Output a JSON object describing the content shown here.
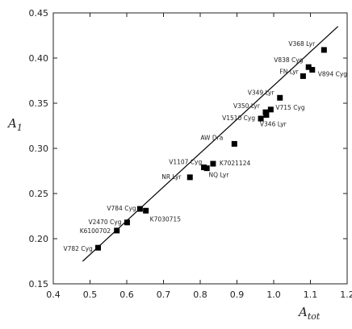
{
  "chart_data": {
    "type": "scatter",
    "x_label": {
      "main": "A",
      "sub": "tot"
    },
    "y_label": {
      "main": "A",
      "sub": "1"
    },
    "xlim": [
      0.4,
      1.2
    ],
    "ylim": [
      0.15,
      0.45
    ],
    "x_ticks": [
      "0.4",
      "0.5",
      "0.6",
      "0.7",
      "0.8",
      "0.9",
      "1.0",
      "1.1",
      "1.2"
    ],
    "y_ticks": [
      "0.15",
      "0.20",
      "0.25",
      "0.30",
      "0.35",
      "0.40",
      "0.45"
    ],
    "grid": false,
    "fit_line": {
      "x": [
        0.48,
        1.175
      ],
      "y": [
        0.175,
        0.435
      ]
    },
    "points": [
      {
        "label": "V368 Lyr",
        "x": 1.137,
        "y": 0.409
      },
      {
        "label": "V838 Cyg",
        "x": 1.095,
        "y": 0.39
      },
      {
        "label": "V894 Cyg",
        "x": 1.105,
        "y": 0.387
      },
      {
        "label": "FN Lyr",
        "x": 1.08,
        "y": 0.38
      },
      {
        "label": "V349 Lyr",
        "x": 1.017,
        "y": 0.356
      },
      {
        "label": "V350 Lyr",
        "x": 0.978,
        "y": 0.34
      },
      {
        "label": "V715 Cyg",
        "x": 0.992,
        "y": 0.343
      },
      {
        "label": "V1510 Cyg",
        "x": 0.965,
        "y": 0.333
      },
      {
        "label": "V346 Lyr",
        "x": 0.98,
        "y": 0.337
      },
      {
        "label": "AW Dra",
        "x": 0.893,
        "y": 0.305
      },
      {
        "label": "V1107 Cyg",
        "x": 0.818,
        "y": 0.278
      },
      {
        "label": "K7021124",
        "x": 0.835,
        "y": 0.283
      },
      {
        "label": "NR Lyr",
        "x": 0.772,
        "y": 0.268
      },
      {
        "label": "NQ Lyr",
        "x": 0.81,
        "y": 0.279
      },
      {
        "label": "V784 Cyg",
        "x": 0.636,
        "y": 0.233
      },
      {
        "label": "K7030715",
        "x": 0.652,
        "y": 0.231
      },
      {
        "label": "V2470 Cyg",
        "x": 0.601,
        "y": 0.218
      },
      {
        "label": "K6100702",
        "x": 0.573,
        "y": 0.209
      },
      {
        "label": "V782 Cyg",
        "x": 0.522,
        "y": 0.19
      }
    ]
  }
}
